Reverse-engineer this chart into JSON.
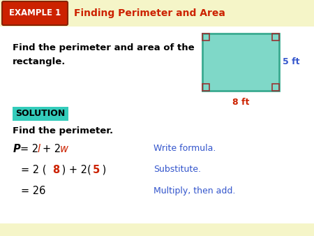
{
  "bg_color": "#ffffff",
  "header_bg": "#f5f5c8",
  "example_box_color": "#cc2200",
  "example_box_text": "EXAMPLE 1",
  "header_title": "Finding Perimeter and Area",
  "header_title_color": "#cc2200",
  "problem_text_line1": "Find the perimeter and area of the",
  "problem_text_line2": "rectangle.",
  "rect_fill": "#7fd8c8",
  "rect_stroke": "#3aaa90",
  "rect_corner_color": "#993333",
  "label_5ft": "5 ft",
  "label_8ft": "8 ft",
  "label_5ft_color": "#3355cc",
  "label_8ft_color": "#cc2200",
  "solution_bg": "#33ccbb",
  "solution_text": "SOLUTION",
  "find_perimeter_text": "Find the perimeter.",
  "right1": "Write formula.",
  "right2": "Substitute.",
  "right3": "Multiply, then add.",
  "right_color": "#3355cc",
  "number_color": "#cc2200",
  "black": "#000000"
}
